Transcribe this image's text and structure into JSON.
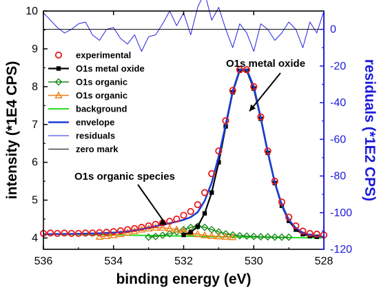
{
  "chart_data": {
    "type": "line",
    "xlabel": "binding energy (eV)",
    "ylabel": "intensity (*1E4 CPS)",
    "y2label": "residuals (*1E2 CPS)",
    "xlim": [
      536,
      528
    ],
    "ylim": [
      3.7,
      10
    ],
    "y2lim": [
      -120,
      10
    ],
    "x_ticks": [
      "536",
      "534",
      "532",
      "530",
      "528"
    ],
    "y_ticks": [
      "4",
      "5",
      "6",
      "7",
      "8",
      "9",
      "10"
    ],
    "y2_ticks": [
      "0",
      "-20",
      "-40",
      "-60",
      "-80",
      "-100",
      "-120"
    ],
    "colors": {
      "experimental": "#e8191b",
      "metal_oxide": "#000000",
      "organic1": "#1a8a1a",
      "organic2": "#f07d12",
      "background": "#22dd22",
      "envelope": "#1a3fd6",
      "residuals": "#2020dd",
      "zero_mark": "#000000"
    },
    "series": [
      {
        "name": "experimental",
        "style": "open-circle",
        "color": "#e8191b",
        "x": [
          536,
          535.8,
          535.6,
          535.4,
          535.2,
          535,
          534.8,
          534.6,
          534.4,
          534.2,
          534,
          533.8,
          533.6,
          533.4,
          533.2,
          533,
          532.8,
          532.6,
          532.4,
          532.2,
          532,
          531.8,
          531.6,
          531.4,
          531.2,
          531,
          530.8,
          530.6,
          530.4,
          530.2,
          530,
          529.8,
          529.6,
          529.4,
          529.2,
          529,
          528.8,
          528.6,
          528.4,
          528.2,
          528
        ],
        "y": [
          4.12,
          4.13,
          4.12,
          4.13,
          4.12,
          4.12,
          4.13,
          4.13,
          4.14,
          4.15,
          4.17,
          4.19,
          4.22,
          4.25,
          4.28,
          4.32,
          4.36,
          4.4,
          4.44,
          4.5,
          4.6,
          4.7,
          4.88,
          5.2,
          5.7,
          6.3,
          7.1,
          7.9,
          8.45,
          8.45,
          8.0,
          7.2,
          6.3,
          5.5,
          4.95,
          4.55,
          4.32,
          4.18,
          4.12,
          4.1,
          4.08
        ]
      },
      {
        "name": "O1s metal oxide",
        "style": "square-line",
        "color": "#000000",
        "x": [
          532,
          531.8,
          531.6,
          531.4,
          531.2,
          531,
          530.8,
          530.6,
          530.4,
          530.2,
          530,
          529.8,
          529.6,
          529.4,
          529.2,
          529,
          528.8,
          528.6,
          528.4,
          528.2
        ],
        "y": [
          4.08,
          4.15,
          4.3,
          4.65,
          5.2,
          6.0,
          6.95,
          7.85,
          8.42,
          8.42,
          7.95,
          7.15,
          6.25,
          5.45,
          4.85,
          4.45,
          4.22,
          4.1,
          4.05,
          4.03
        ]
      },
      {
        "name": "O1s organic",
        "style": "open-diamond",
        "color": "#1a8a1a",
        "x": [
          533,
          532.8,
          532.6,
          532.4,
          532.2,
          532,
          531.8,
          531.6,
          531.4,
          531.2,
          531,
          530.8,
          530.6,
          530.4,
          530.2,
          530,
          529.8,
          529.6,
          529.4,
          529.2,
          529
        ],
        "y": [
          4.02,
          4.04,
          4.07,
          4.11,
          4.16,
          4.22,
          4.28,
          4.31,
          4.28,
          4.22,
          4.16,
          4.11,
          4.08,
          4.06,
          4.05,
          4.04,
          4.03,
          4.03,
          4.02,
          4.02,
          4.02
        ]
      },
      {
        "name": "O1s organic",
        "style": "open-triangle",
        "color": "#f07d12",
        "x": [
          534.4,
          534.2,
          534,
          533.8,
          533.6,
          533.4,
          533.2,
          533,
          532.8,
          532.6,
          532.4,
          532.2,
          532,
          531.8,
          531.6,
          531.4,
          531.2,
          531,
          530.8,
          530.6
        ],
        "y": [
          4.03,
          4.05,
          4.07,
          4.1,
          4.14,
          4.18,
          4.22,
          4.25,
          4.27,
          4.27,
          4.25,
          4.22,
          4.18,
          4.14,
          4.1,
          4.07,
          4.05,
          4.04,
          4.03,
          4.02
        ]
      },
      {
        "name": "background",
        "style": "line",
        "color": "#22dd22",
        "x": [
          536,
          534,
          532,
          531,
          530,
          529,
          528
        ],
        "y": [
          4.1,
          4.08,
          4.05,
          4.03,
          4.02,
          4.01,
          4.0
        ]
      },
      {
        "name": "envelope",
        "style": "line",
        "color": "#1a3fd6",
        "x": [
          536,
          535,
          534.5,
          534,
          533.6,
          533.2,
          533,
          532.8,
          532.6,
          532.4,
          532.2,
          532,
          531.8,
          531.6,
          531.4,
          531.2,
          531,
          530.8,
          530.6,
          530.4,
          530.2,
          530,
          529.8,
          529.6,
          529.4,
          529.2,
          529,
          528.8,
          528.6,
          528.4,
          528.2,
          528
        ],
        "y": [
          4.1,
          4.11,
          4.12,
          4.14,
          4.17,
          4.23,
          4.27,
          4.31,
          4.35,
          4.39,
          4.43,
          4.48,
          4.55,
          4.68,
          4.98,
          5.46,
          6.16,
          7.0,
          7.88,
          8.45,
          8.45,
          8.0,
          7.18,
          6.28,
          5.47,
          4.88,
          4.48,
          4.26,
          4.14,
          4.08,
          4.05,
          4.03
        ]
      },
      {
        "name": "residuals",
        "style": "thin-line",
        "axis": "right",
        "color": "#2020dd",
        "x": [
          536,
          535.8,
          535.6,
          535.4,
          535.2,
          535,
          534.8,
          534.6,
          534.4,
          534.2,
          534,
          533.8,
          533.6,
          533.4,
          533.2,
          533,
          532.8,
          532.6,
          532.4,
          532.2,
          532,
          531.8,
          531.6,
          531.4,
          531.2,
          531,
          530.8,
          530.6,
          530.4,
          530.2,
          530,
          529.8,
          529.6,
          529.4,
          529.2,
          529,
          528.8,
          528.6,
          528.4,
          528.2,
          528
        ],
        "y": [
          9,
          5,
          1,
          -2,
          0,
          3,
          4,
          -3,
          -6,
          0,
          1,
          -5,
          -8,
          -3,
          -12,
          -4,
          -3,
          3,
          10,
          2,
          9,
          -3,
          12,
          20,
          5,
          12,
          0,
          -10,
          3,
          -2,
          -12,
          3,
          0,
          -6,
          -2,
          4,
          0,
          -10,
          4,
          -2,
          10
        ]
      },
      {
        "name": "zero mark",
        "style": "thin-line",
        "axis": "right",
        "color": "#000000",
        "x": [
          536,
          528
        ],
        "y": [
          0,
          0
        ]
      }
    ],
    "legend": {
      "position": "upper-left",
      "entries": [
        "experimental",
        "O1s metal oxide",
        "O1s organic",
        "O1s organic",
        "background",
        "envelope",
        "residuals",
        "zero mark"
      ]
    },
    "annotations": [
      {
        "text": "O1s metal oxide",
        "arrow_to_x": 530.2,
        "arrow_to_y": 7.35
      },
      {
        "text": "O1s organic species",
        "arrow_to_x": 532.5,
        "arrow_to_y": 4.35
      }
    ]
  }
}
